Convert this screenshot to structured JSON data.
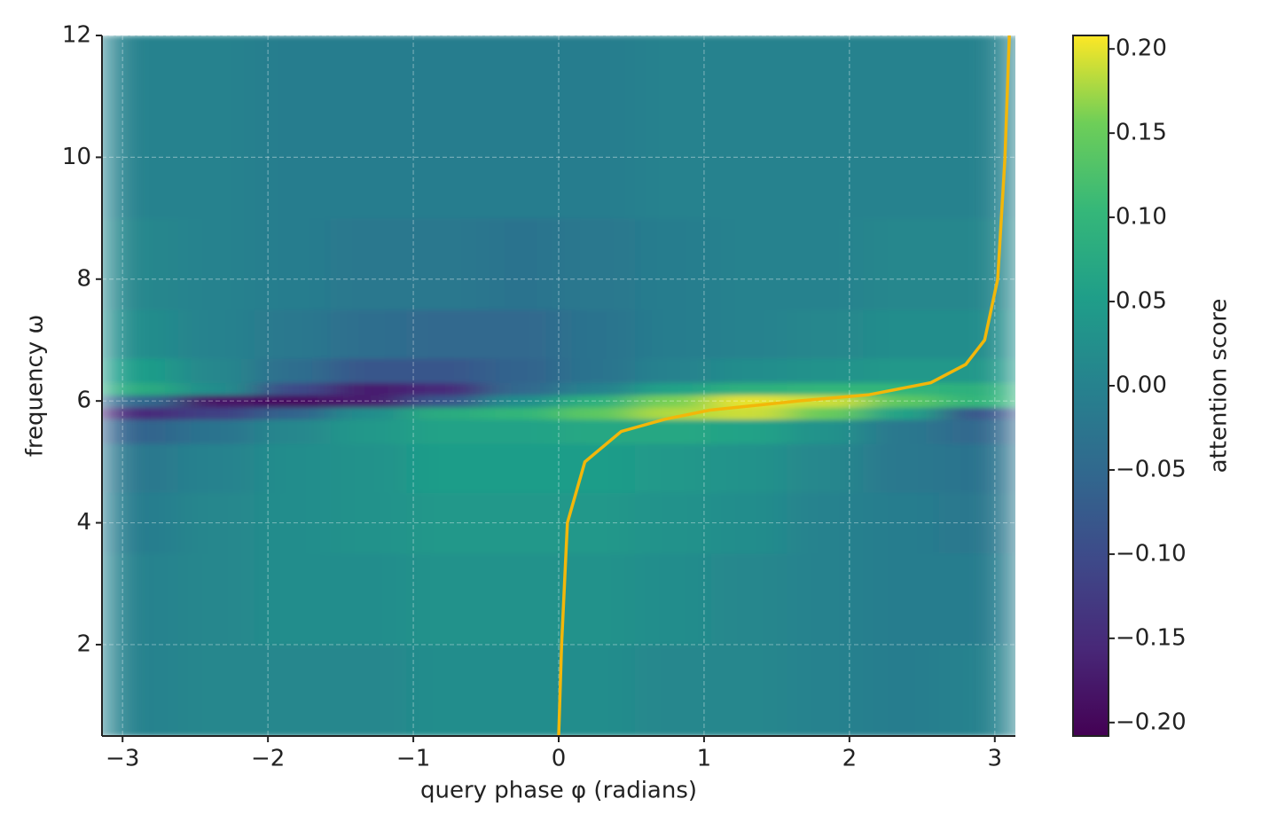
{
  "chart_data": {
    "type": "heatmap",
    "colormap": "viridis",
    "xlabel": "query phase φ (radians)",
    "ylabel": "frequency ω",
    "colorbar_label": "attention score",
    "x_edges": [
      -3.1416,
      -2.618,
      -2.0944,
      -1.5708,
      -1.0472,
      -0.5236,
      0,
      0.5236,
      1.0472,
      1.5708,
      2.0944,
      2.618,
      3.1416
    ],
    "y_edges": [
      0.5,
      2,
      3.5,
      4.5,
      5.3,
      5.7,
      5.9,
      6.1,
      6.3,
      6.7,
      7.5,
      9,
      12
    ],
    "z": [
      [
        0.0,
        0.01,
        0.01,
        0.01,
        0.02,
        0.02,
        0.02,
        0.01,
        0.01,
        0.0,
        -0.01,
        0.0
      ],
      [
        0.0,
        0.01,
        0.02,
        0.02,
        0.03,
        0.03,
        0.03,
        0.02,
        0.01,
        0.0,
        -0.01,
        -0.01
      ],
      [
        -0.01,
        0.01,
        0.02,
        0.03,
        0.04,
        0.04,
        0.04,
        0.03,
        0.02,
        0.0,
        -0.01,
        -0.02
      ],
      [
        -0.02,
        0.0,
        0.02,
        0.03,
        0.05,
        0.05,
        0.05,
        0.04,
        0.03,
        0.01,
        -0.02,
        -0.03
      ],
      [
        -0.06,
        -0.03,
        0.01,
        0.04,
        0.06,
        0.06,
        0.07,
        0.07,
        0.06,
        0.03,
        -0.02,
        -0.05
      ],
      [
        -0.15,
        -0.12,
        -0.06,
        0.02,
        0.08,
        0.1,
        0.14,
        0.18,
        0.19,
        0.15,
        0.06,
        -0.08
      ],
      [
        -0.05,
        -0.18,
        -0.19,
        -0.17,
        -0.08,
        0.02,
        0.09,
        0.16,
        0.2,
        0.19,
        0.14,
        0.1
      ],
      [
        0.08,
        0.02,
        -0.1,
        -0.17,
        -0.15,
        -0.05,
        0.0,
        0.06,
        0.09,
        0.1,
        0.1,
        0.09
      ],
      [
        0.05,
        0.01,
        -0.04,
        -0.08,
        -0.08,
        -0.06,
        -0.03,
        0.0,
        0.02,
        0.03,
        0.04,
        0.04
      ],
      [
        0.02,
        0.0,
        -0.02,
        -0.04,
        -0.05,
        -0.05,
        -0.03,
        -0.01,
        0.0,
        0.01,
        0.02,
        0.02
      ],
      [
        0.01,
        0.0,
        -0.01,
        -0.02,
        -0.02,
        -0.03,
        -0.02,
        -0.01,
        0.0,
        0.0,
        0.01,
        0.01
      ],
      [
        0.0,
        0.0,
        -0.01,
        -0.01,
        -0.01,
        -0.01,
        -0.01,
        0.0,
        0.0,
        0.0,
        0.0,
        0.0
      ]
    ],
    "curve": {
      "color": "#f2b70a",
      "x": [
        0.0,
        0.02,
        0.04,
        0.06,
        0.18,
        0.43,
        0.73,
        1.04,
        1.65,
        2.13,
        2.56,
        2.8,
        2.93,
        3.02,
        3.07,
        3.1
      ],
      "y": [
        0.5,
        2,
        3,
        4,
        5,
        5.5,
        5.7,
        5.85,
        6.0,
        6.1,
        6.3,
        6.6,
        7.0,
        8,
        10,
        12
      ]
    },
    "xlim": [
      -3.1416,
      3.1416
    ],
    "ylim": [
      0.5,
      12
    ],
    "clim": [
      -0.208,
      0.208
    ],
    "xticks": [
      {
        "value": -3,
        "label": "−3"
      },
      {
        "value": -2,
        "label": "−2"
      },
      {
        "value": -1,
        "label": "−1"
      },
      0,
      1,
      2,
      3
    ],
    "yticks": [
      2,
      4,
      6,
      8,
      10,
      12
    ],
    "cticks": [
      {
        "value": -0.2,
        "label": "−0.20"
      },
      {
        "value": -0.15,
        "label": "−0.15"
      },
      {
        "value": -0.1,
        "label": "−0.10"
      },
      {
        "value": -0.05,
        "label": "−0.05"
      },
      {
        "value": 0,
        "label": "0.00"
      },
      {
        "value": 0.05,
        "label": "0.05"
      },
      {
        "value": 0.1,
        "label": "0.10"
      },
      {
        "value": 0.15,
        "label": "0.15"
      },
      {
        "value": 0.2,
        "label": "0.20"
      }
    ],
    "grid": true
  }
}
